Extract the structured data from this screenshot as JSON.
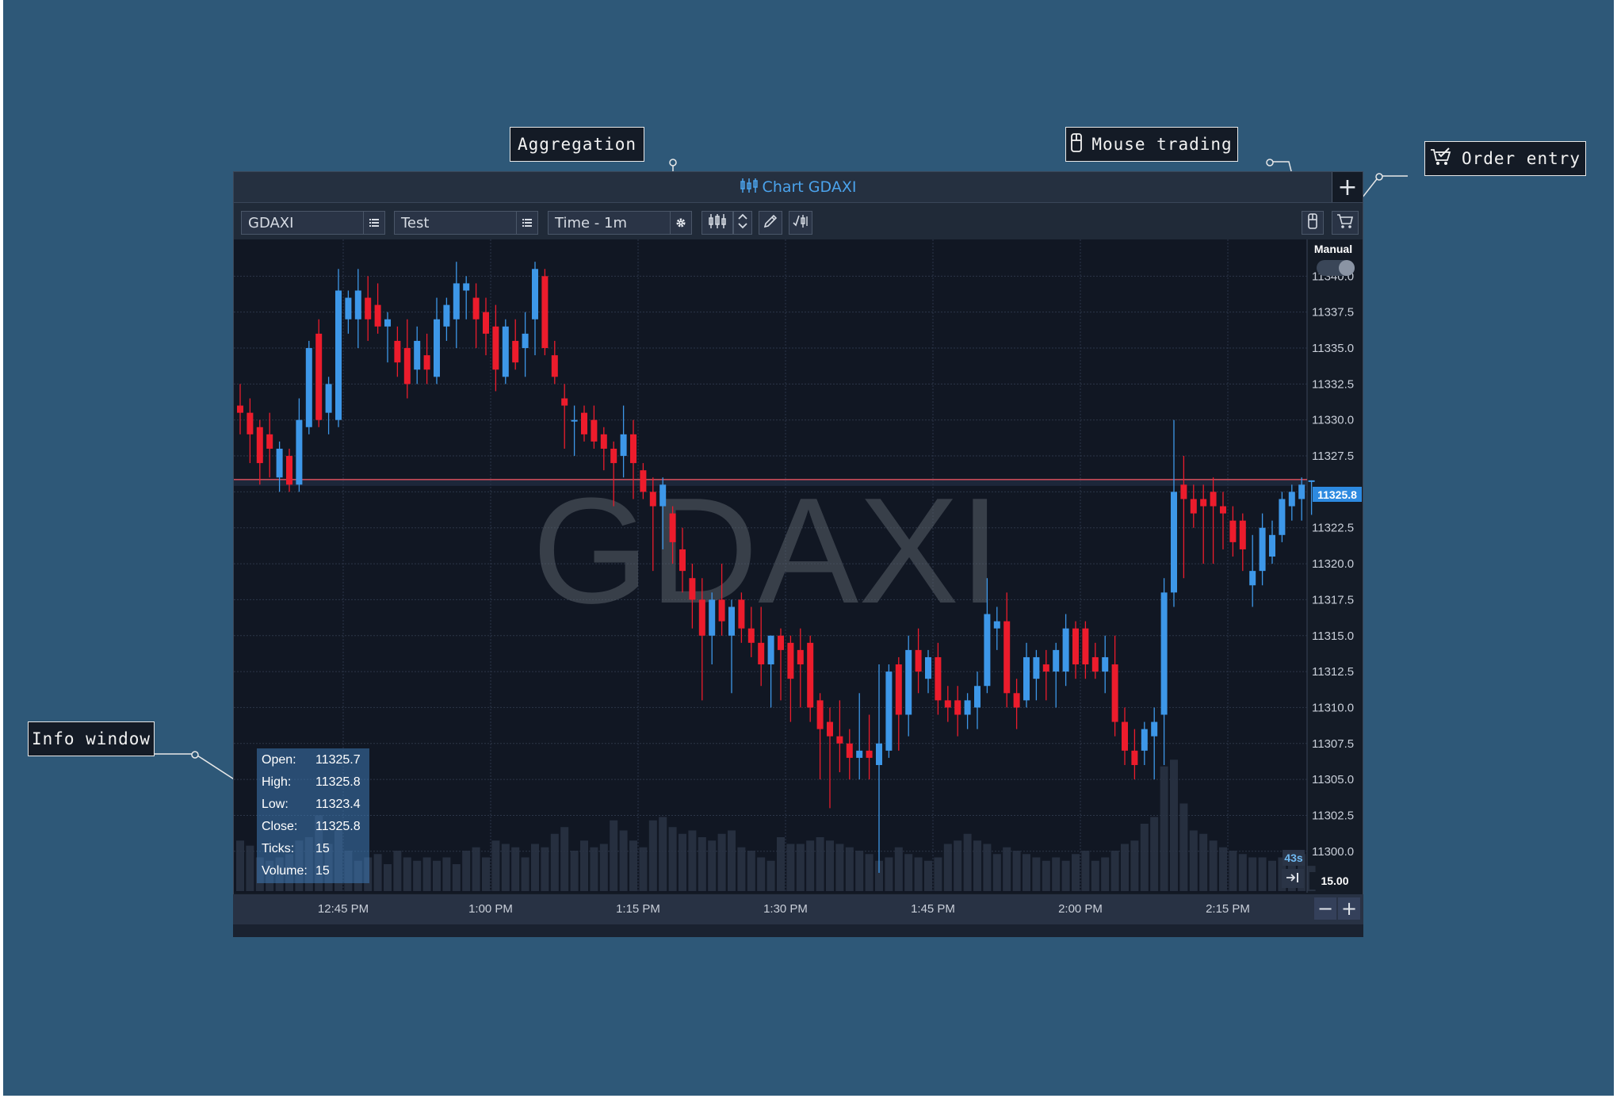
{
  "callouts": {
    "aggregation": "Aggregation",
    "mouse_trading": "Mouse trading",
    "order_entry": "Order entry",
    "info_window": "Info window"
  },
  "window": {
    "title": "Chart GDAXI",
    "add_button": "+"
  },
  "toolbar": {
    "symbol": "GDAXI",
    "account": "Test",
    "aggregation": "Time - 1m"
  },
  "chart": {
    "watermark": "GDAXI",
    "manual_label": "Manual",
    "price_tag": "11325.8",
    "countdown": "43s",
    "volume_value": "15.00",
    "zoom_out": "−",
    "zoom_in": "+"
  },
  "info_window": {
    "rows": [
      {
        "label": "Open:",
        "value": "11325.7"
      },
      {
        "label": "High:",
        "value": "11325.8"
      },
      {
        "label": "Low:",
        "value": "11323.4"
      },
      {
        "label": "Close:",
        "value": "11325.8"
      },
      {
        "label": "Ticks:",
        "value": "15"
      },
      {
        "label": "Volume:",
        "value": "15"
      }
    ]
  },
  "colors": {
    "up": "#3d97e8",
    "down": "#ec1c2c",
    "background": "#2e5878",
    "accent": "#4ba3ec"
  },
  "chart_data": {
    "type": "candlestick",
    "title": "Chart GDAXI",
    "ylim": [
      11298.5,
      11342.5
    ],
    "y_ticks": [
      "11340.0",
      "11337.5",
      "11335.0",
      "11332.5",
      "11330.0",
      "11327.5",
      "11325.0",
      "11322.5",
      "11320.0",
      "11317.5",
      "11315.0",
      "11312.5",
      "11310.0",
      "11307.5",
      "11305.0",
      "11302.5",
      "11300.0"
    ],
    "x_ticks": [
      {
        "label": "12:45 PM",
        "t": 10
      },
      {
        "label": "1:00 PM",
        "t": 25
      },
      {
        "label": "1:15 PM",
        "t": 40
      },
      {
        "label": "1:30 PM",
        "t": 55
      },
      {
        "label": "1:45 PM",
        "t": 70
      },
      {
        "label": "2:00 PM",
        "t": 85
      },
      {
        "label": "2:15 PM",
        "t": 100
      }
    ],
    "last_price": 11325.8,
    "volume_max": 80,
    "candles": [
      [
        11331.0,
        11332.5,
        11329.0,
        11330.5,
        30
      ],
      [
        11330.5,
        11331.5,
        11327.0,
        11329.0,
        27
      ],
      [
        11329.5,
        11330.0,
        11325.5,
        11327.0,
        20
      ],
      [
        11329.0,
        11330.5,
        11326.0,
        11328.0,
        18
      ],
      [
        11326.0,
        11328.5,
        11325.0,
        11328.0,
        20
      ],
      [
        11327.5,
        11328.0,
        11325.0,
        11325.5,
        22
      ],
      [
        11325.5,
        11331.5,
        11325.0,
        11330.0,
        30
      ],
      [
        11329.5,
        11335.5,
        11329.0,
        11335.0,
        32
      ],
      [
        11336.0,
        11337.0,
        11329.5,
        11330.0,
        45
      ],
      [
        11330.5,
        11333.0,
        11329.0,
        11332.5,
        28
      ],
      [
        11330.0,
        11340.5,
        11329.5,
        11339.0,
        36
      ],
      [
        11337.0,
        11339.0,
        11336.0,
        11338.5,
        24
      ],
      [
        11337.0,
        11340.5,
        11335.0,
        11339.0,
        18
      ],
      [
        11338.5,
        11340.0,
        11335.5,
        11337.0,
        20
      ],
      [
        11338.0,
        11339.5,
        11336.0,
        11336.5,
        22
      ],
      [
        11336.5,
        11337.5,
        11334.0,
        11337.0,
        16
      ],
      [
        11335.5,
        11336.5,
        11333.0,
        11334.0,
        24
      ],
      [
        11335.0,
        11337.0,
        11331.5,
        11332.5,
        20
      ],
      [
        11333.5,
        11336.5,
        11332.5,
        11335.5,
        18
      ],
      [
        11334.5,
        11336.0,
        11332.5,
        11333.5,
        20
      ],
      [
        11333.0,
        11338.5,
        11332.5,
        11337.0,
        18
      ],
      [
        11336.5,
        11338.5,
        11335.5,
        11338.0,
        20
      ],
      [
        11337.0,
        11341.0,
        11335.0,
        11339.5,
        16
      ],
      [
        11339.0,
        11340.0,
        11337.0,
        11339.5,
        24
      ],
      [
        11338.5,
        11339.5,
        11335.0,
        11337.0,
        26
      ],
      [
        11337.5,
        11338.5,
        11334.5,
        11336.0,
        20
      ],
      [
        11336.5,
        11338.0,
        11332.0,
        11333.5,
        30
      ],
      [
        11333.0,
        11337.0,
        11332.5,
        11336.5,
        28
      ],
      [
        11335.5,
        11337.0,
        11333.5,
        11334.0,
        26
      ],
      [
        11335.0,
        11337.5,
        11333.0,
        11336.0,
        20
      ],
      [
        11337.0,
        11341.0,
        11334.5,
        11340.5,
        28
      ],
      [
        11340.0,
        11340.5,
        11334.5,
        11335.0,
        26
      ],
      [
        11334.5,
        11335.5,
        11332.5,
        11333.0,
        34
      ],
      [
        11331.5,
        11332.5,
        11328.0,
        11331.0,
        38
      ],
      [
        11330.0,
        11331.0,
        11327.5,
        11330.0,
        24
      ],
      [
        11330.5,
        11331.0,
        11328.5,
        11329.0,
        30
      ],
      [
        11330.0,
        11331.0,
        11328.0,
        11328.5,
        26
      ],
      [
        11329.0,
        11329.5,
        11326.5,
        11328.0,
        28
      ],
      [
        11328.0,
        11328.5,
        11324.0,
        11327.0,
        42
      ],
      [
        11327.5,
        11331.0,
        11326.0,
        11329.0,
        36
      ],
      [
        11329.0,
        11330.0,
        11324.5,
        11327.0,
        30
      ],
      [
        11326.5,
        11327.0,
        11324.5,
        11325.0,
        26
      ],
      [
        11325.0,
        11326.0,
        11319.5,
        11324.0,
        42
      ],
      [
        11324.0,
        11326.0,
        11321.0,
        11325.5,
        44
      ],
      [
        11323.5,
        11324.0,
        11320.0,
        11321.5,
        38
      ],
      [
        11321.0,
        11322.5,
        11318.0,
        11319.5,
        34
      ],
      [
        11319.0,
        11320.0,
        11315.5,
        11317.5,
        36
      ],
      [
        11317.5,
        11319.0,
        11310.5,
        11315.0,
        32
      ],
      [
        11315.0,
        11318.0,
        11313.0,
        11317.5,
        30
      ],
      [
        11317.5,
        11320.0,
        11315.0,
        11316.0,
        34
      ],
      [
        11315.0,
        11317.5,
        11311.0,
        11317.0,
        36
      ],
      [
        11317.5,
        11318.0,
        11314.5,
        11315.5,
        26
      ],
      [
        11315.5,
        11317.0,
        11313.5,
        11314.5,
        24
      ],
      [
        11314.5,
        11317.0,
        11311.5,
        11313.0,
        20
      ],
      [
        11313.0,
        11315.0,
        11310.0,
        11315.0,
        18
      ],
      [
        11315.0,
        11315.5,
        11310.5,
        11314.0,
        32
      ],
      [
        11314.5,
        11315.0,
        11309.0,
        11312.0,
        28
      ],
      [
        11314.0,
        11315.5,
        11310.0,
        11313.0,
        28
      ],
      [
        11314.5,
        11315.0,
        11309.0,
        11310.0,
        30
      ],
      [
        11310.5,
        11311.0,
        11305.0,
        11308.5,
        32
      ],
      [
        11309.0,
        11310.0,
        11303.0,
        11308.0,
        30
      ],
      [
        11308.0,
        11310.5,
        11305.5,
        11307.5,
        28
      ],
      [
        11307.5,
        11308.5,
        11305.0,
        11306.5,
        26
      ],
      [
        11306.5,
        11311.0,
        11305.0,
        11307.0,
        24
      ],
      [
        11307.0,
        11309.5,
        11305.0,
        11306.5,
        22
      ],
      [
        11306.0,
        11313.0,
        11298.5,
        11307.5,
        18
      ],
      [
        11307.0,
        11313.0,
        11306.5,
        11312.5,
        20
      ],
      [
        11313.0,
        11313.5,
        11307.0,
        11309.5,
        26
      ],
      [
        11309.5,
        11315.0,
        11308.0,
        11314.0,
        22
      ],
      [
        11314.0,
        11315.5,
        11311.0,
        11312.5,
        20
      ],
      [
        11312.0,
        11314.0,
        11311.0,
        11313.5,
        18
      ],
      [
        11313.5,
        11314.5,
        11309.5,
        11310.5,
        20
      ],
      [
        11310.5,
        11311.5,
        11309.0,
        11310.0,
        28
      ],
      [
        11310.5,
        11311.5,
        11308.0,
        11309.5,
        30
      ],
      [
        11309.5,
        11311.0,
        11308.5,
        11310.5,
        34
      ],
      [
        11310.0,
        11312.5,
        11308.5,
        11311.5,
        30
      ],
      [
        11311.5,
        11319.0,
        11311.0,
        11316.5,
        28
      ],
      [
        11315.5,
        11317.0,
        11314.0,
        11316.0,
        22
      ],
      [
        11316.0,
        11318.0,
        11310.0,
        11311.0,
        26
      ],
      [
        11311.0,
        11312.0,
        11308.5,
        11310.0,
        24
      ],
      [
        11310.5,
        11314.5,
        11310.0,
        11313.5,
        22
      ],
      [
        11312.0,
        11314.0,
        11310.5,
        11313.5,
        20
      ],
      [
        11313.0,
        11314.0,
        11310.5,
        11312.5,
        18
      ],
      [
        11312.5,
        11314.5,
        11310.0,
        11314.0,
        20
      ],
      [
        11312.5,
        11316.5,
        11311.5,
        11315.5,
        18
      ],
      [
        11315.5,
        11316.0,
        11312.0,
        11313.0,
        22
      ],
      [
        11315.5,
        11316.0,
        11312.0,
        11313.0,
        24
      ],
      [
        11313.5,
        11314.5,
        11312.0,
        11312.5,
        18
      ],
      [
        11312.5,
        11315.0,
        11311.0,
        11313.5,
        20
      ],
      [
        11313.0,
        11315.0,
        11308.0,
        11309.0,
        24
      ],
      [
        11309.0,
        11310.0,
        11306.0,
        11307.0,
        28
      ],
      [
        11307.0,
        11308.5,
        11305.0,
        11306.0,
        30
      ],
      [
        11307.0,
        11309.0,
        11306.0,
        11308.5,
        40
      ],
      [
        11308.0,
        11310.0,
        11305.0,
        11309.0,
        44
      ],
      [
        11309.5,
        11319.0,
        11306.0,
        11318.0,
        74
      ],
      [
        11318.0,
        11330.0,
        11317.0,
        11325.0,
        78
      ],
      [
        11325.5,
        11327.5,
        11319.0,
        11324.5,
        52
      ],
      [
        11324.5,
        11325.5,
        11322.5,
        11323.5,
        36
      ],
      [
        11324.5,
        11325.5,
        11320.0,
        11324.0,
        34
      ],
      [
        11325.0,
        11326.0,
        11320.0,
        11324.0,
        30
      ],
      [
        11324.0,
        11325.0,
        11321.0,
        11323.5,
        26
      ],
      [
        11323.0,
        11324.0,
        11320.5,
        11321.5,
        24
      ],
      [
        11323.0,
        11323.5,
        11319.5,
        11321.0,
        22
      ],
      [
        11318.5,
        11322.0,
        11317.0,
        11319.5,
        20
      ],
      [
        11319.5,
        11323.5,
        11318.5,
        11322.5,
        20
      ],
      [
        11320.5,
        11323.0,
        11320.0,
        11322.0,
        18
      ],
      [
        11322.0,
        11325.0,
        11321.5,
        11324.5,
        20
      ],
      [
        11324.0,
        11325.5,
        11323.0,
        11325.0,
        18
      ],
      [
        11324.5,
        11326.0,
        11323.0,
        11325.5,
        22
      ],
      [
        11325.7,
        11325.8,
        11323.4,
        11325.8,
        15
      ]
    ]
  }
}
